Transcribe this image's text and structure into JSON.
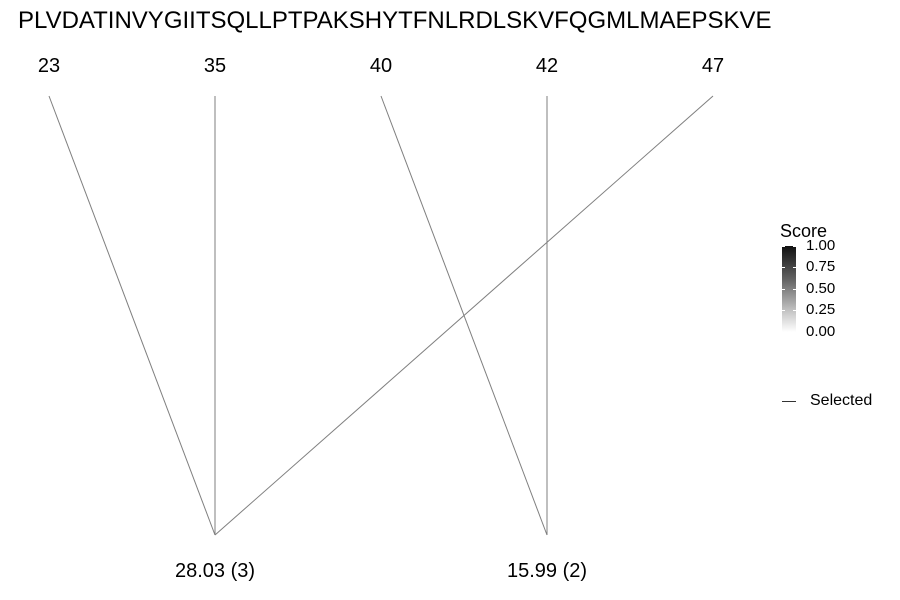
{
  "sequence": "PLVDATINVYGIITSQLLPTPAKSHYTFNLRDLSKVFQGMLMAEPSKVE",
  "positions": [
    "23",
    "35",
    "40",
    "42",
    "47"
  ],
  "masses": [
    "28.03 (3)",
    "15.99 (2)"
  ],
  "links": [
    {
      "from": 0,
      "to": 0
    },
    {
      "from": 1,
      "to": 0
    },
    {
      "from": 4,
      "to": 0
    },
    {
      "from": 2,
      "to": 1
    },
    {
      "from": 3,
      "to": 1
    }
  ],
  "legend": {
    "title": "Score",
    "ticks": [
      "1.00",
      "0.75",
      "0.50",
      "0.25",
      "0.00"
    ],
    "selected_label": "Selected"
  },
  "colors": {
    "line": "#7f7f7f",
    "scale_high": "#111111",
    "scale_low": "#ffffff"
  }
}
